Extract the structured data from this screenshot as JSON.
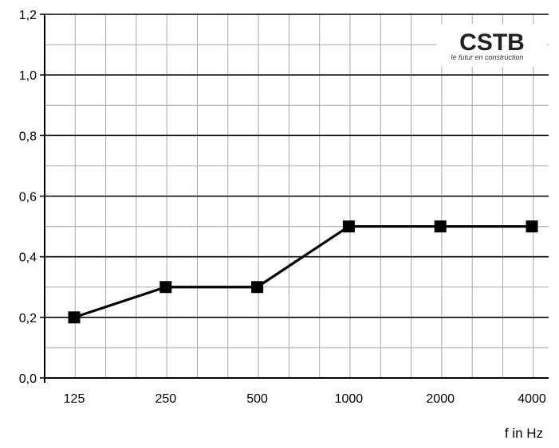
{
  "chart_data": {
    "type": "line",
    "title": "",
    "xlabel": "f in Hz",
    "ylabel": "",
    "categories": [
      "125",
      "250",
      "500",
      "1000",
      "2000",
      "4000"
    ],
    "values": [
      0.2,
      0.3,
      0.3,
      0.5,
      0.5,
      0.5
    ],
    "ylim": [
      0.0,
      1.2
    ],
    "yticks": [
      "0,0",
      "0,2",
      "0,4",
      "0,6",
      "0,8",
      "1,0",
      "1,2"
    ],
    "grid": true,
    "marker": "square",
    "line_color": "#000000"
  },
  "logo": {
    "name": "CSTB",
    "tagline": "le futur en construction"
  }
}
